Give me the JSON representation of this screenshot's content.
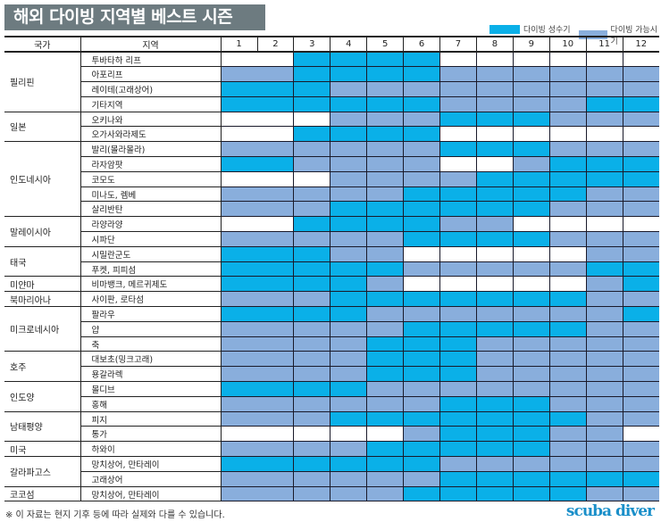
{
  "title": "해외 다이빙 지역별 베스트 시즌",
  "legend": [
    {
      "label": "다이빙 성수기",
      "code": "P",
      "color": "#0ab0e8"
    },
    {
      "label": "다이빙 가능시기",
      "code": "A",
      "color": "#89aedc"
    }
  ],
  "colors": {
    "P": "#0ab0e8",
    "A": "#89aedc",
    "0": "#ffffff"
  },
  "footnote": "※ 이 자료는 현지 기후 등에 따라 실제와 다를 수 있습니다.",
  "logo": "scuba diver",
  "chart_data": {
    "type": "table",
    "title": "해외 다이빙 지역별 베스트 시즌",
    "headers": {
      "country": "국가",
      "region": "지역"
    },
    "months": [
      "1",
      "2",
      "3",
      "4",
      "5",
      "6",
      "7",
      "8",
      "9",
      "10",
      "11",
      "12"
    ],
    "legend_codes": {
      "P": "다이빙 성수기",
      "A": "다이빙 가능시기",
      "0": ""
    },
    "groups": [
      {
        "country": "필리핀",
        "rows": [
          {
            "region": "투바타하 리프",
            "months": "00PPPP000000"
          },
          {
            "region": "아포리프",
            "months": "AAPPPPAAAAAA"
          },
          {
            "region": "레이테(고래상어)",
            "months": "PPPAAAAAAAAA"
          },
          {
            "region": "기타지역",
            "months": "PPPPPPAAAAPP"
          }
        ]
      },
      {
        "country": "일본",
        "rows": [
          {
            "region": "오키나와",
            "months": "000AAAPPPAAA"
          },
          {
            "region": "오가사와라제도",
            "months": "00PPPP000000"
          }
        ]
      },
      {
        "country": "인도네시아",
        "rows": [
          {
            "region": "발리(몰라몰라)",
            "months": "AAAAAAPPPAAA"
          },
          {
            "region": "라자암팟",
            "months": "PPAAAA00APPP"
          },
          {
            "region": "코모도",
            "months": "000AAAAPPPPP"
          },
          {
            "region": "미나도, 렘베",
            "months": "AAAAAPPPPPAA"
          },
          {
            "region": "살리반탄",
            "months": "AAAPPPPPPAAA"
          }
        ]
      },
      {
        "country": "말레이시아",
        "rows": [
          {
            "region": "라양라양",
            "months": "00PPPPAA0000"
          },
          {
            "region": "시파단",
            "months": "AAAAAPPPPAAA"
          }
        ]
      },
      {
        "country": "태국",
        "rows": [
          {
            "region": "시밀란군도",
            "months": "PPPAA00000AA"
          },
          {
            "region": "푸켓, 피피섬",
            "months": "PPPPPAAAAAPP"
          }
        ]
      },
      {
        "country": "미얀마",
        "rows": [
          {
            "region": "비마뱅크, 메르귀제도",
            "months": "PPPPA00000AP"
          }
        ]
      },
      {
        "country": "북마리아나",
        "rows": [
          {
            "region": "사이판, 로타섬",
            "months": "AAAPPPPPPPAA"
          }
        ]
      },
      {
        "country": "미크로네시아",
        "rows": [
          {
            "region": "팔라우",
            "months": "PPPPAAAAAAAP"
          },
          {
            "region": "얍",
            "months": "AAAAAPPPPPAA"
          },
          {
            "region": "축",
            "months": "AAAAPPPAAAAA"
          }
        ]
      },
      {
        "country": "호주",
        "rows": [
          {
            "region": "대보초(밍크고래)",
            "months": "AAAAPPPAAAAA"
          },
          {
            "region": "용갈라렉",
            "months": "AAAAPPPAAAAA"
          }
        ]
      },
      {
        "country": "인도양",
        "rows": [
          {
            "region": "몰디브",
            "months": "PPPPAAAAAAAA"
          },
          {
            "region": "홍해",
            "months": "AAAAAAPPPAAA"
          }
        ]
      },
      {
        "country": "남태평양",
        "rows": [
          {
            "region": "피지",
            "months": "AAAPPPPPPPAA"
          },
          {
            "region": "통가",
            "months": "00000APPPAA0"
          }
        ]
      },
      {
        "country": "미국",
        "rows": [
          {
            "region": "하와이",
            "months": "AAAAPPPPPAAA"
          }
        ]
      },
      {
        "country": "갈라파고스",
        "rows": [
          {
            "region": "망치상어, 만타레이",
            "months": "PPPPPPAAAAAA"
          },
          {
            "region": "고래상어",
            "months": "AAAAAAPPPPPP"
          }
        ]
      },
      {
        "country": "코코섬",
        "rows": [
          {
            "region": "망치상어, 만타레이",
            "months": "AAAAAPPPPPAA"
          }
        ]
      }
    ]
  }
}
